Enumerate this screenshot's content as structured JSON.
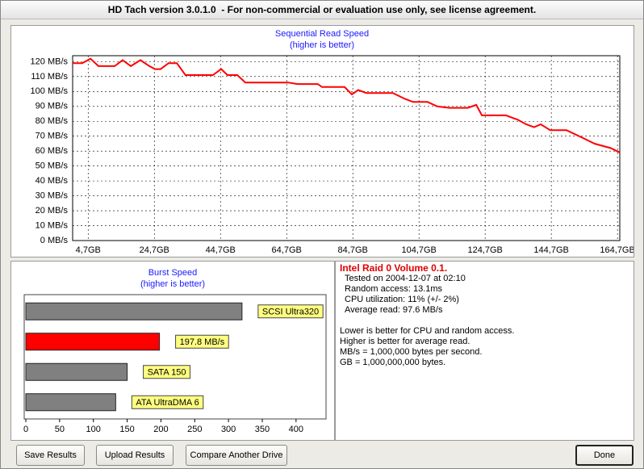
{
  "window": {
    "title": "HD Tach version 3.0.1.0  - For non-commercial or evaluation use only, see license agreement."
  },
  "chart_data": [
    {
      "type": "line",
      "title": "Sequential Read Speed",
      "subtitle": "(higher is better)",
      "color": "#ff0000",
      "grid": true,
      "x": [
        0,
        2.9,
        5.4,
        7.8,
        12.7,
        15.1,
        17.6,
        20.5,
        23.2,
        24.9,
        26.6,
        29.0,
        31.5,
        34.1,
        42.4,
        44.9,
        46.8,
        49.8,
        52.2,
        65.1,
        68.0,
        74.1,
        75.4,
        82.2,
        84.4,
        86.3,
        88.8,
        96.8,
        100.5,
        102.9,
        107.3,
        110.2,
        113.9,
        119.5,
        122.0,
        123.7,
        131.0,
        134.6,
        137.1,
        139.5,
        141.5,
        144.4,
        149.3,
        154.1,
        157.8,
        162.7,
        165.4
      ],
      "values": [
        119,
        119,
        122,
        117,
        117,
        121,
        117,
        121,
        117,
        115,
        115,
        119,
        119,
        111,
        111,
        115,
        111,
        111,
        106,
        106,
        105,
        105,
        103,
        103,
        98,
        101,
        99,
        99,
        95,
        93,
        93,
        90,
        89,
        89,
        91,
        84,
        84,
        81,
        78,
        76,
        78,
        74,
        74,
        69,
        65,
        62,
        59
      ],
      "xlim": [
        0,
        165.4
      ],
      "xticks": [
        {
          "value": 4.7,
          "label": "4,7GB"
        },
        {
          "value": 24.7,
          "label": "24,7GB"
        },
        {
          "value": 44.7,
          "label": "44,7GB"
        },
        {
          "value": 64.7,
          "label": "64,7GB"
        },
        {
          "value": 84.7,
          "label": "84,7GB"
        },
        {
          "value": 104.7,
          "label": "104,7GB"
        },
        {
          "value": 124.7,
          "label": "124,7GB"
        },
        {
          "value": 144.7,
          "label": "144,7GB"
        },
        {
          "value": 164.7,
          "label": "164,7GB"
        }
      ],
      "ylim": [
        0,
        124
      ],
      "yticks": [
        {
          "value": 0,
          "label": "0 MB/s"
        },
        {
          "value": 10,
          "label": "10 MB/s"
        },
        {
          "value": 20,
          "label": "20 MB/s"
        },
        {
          "value": 30,
          "label": "30 MB/s"
        },
        {
          "value": 40,
          "label": "40 MB/s"
        },
        {
          "value": 50,
          "label": "50 MB/s"
        },
        {
          "value": 60,
          "label": "60 MB/s"
        },
        {
          "value": 70,
          "label": "70 MB/s"
        },
        {
          "value": 80,
          "label": "80 MB/s"
        },
        {
          "value": 90,
          "label": "90 MB/s"
        },
        {
          "value": 100,
          "label": "100 MB/s"
        },
        {
          "value": 110,
          "label": "110 MB/s"
        },
        {
          "value": 120,
          "label": "120 MB/s"
        }
      ]
    },
    {
      "type": "bar",
      "orientation": "horizontal",
      "title": "Burst Speed",
      "subtitle": "(higher is better)",
      "grid": false,
      "categories": [
        "SCSI Ultra320",
        null,
        "SATA 150",
        "ATA UltraDMA 6"
      ],
      "values": [
        320,
        197.8,
        150,
        133
      ],
      "value_labels": [
        null,
        "197.8 MB/s",
        null,
        null
      ],
      "colors": [
        "#808080",
        "#ff0000",
        "#808080",
        "#808080"
      ],
      "xlim": [
        0,
        442
      ],
      "xticks": [
        0,
        50,
        100,
        150,
        200,
        250,
        300,
        350,
        400
      ]
    }
  ],
  "info": {
    "title": "Intel Raid 0 Volume 0.1.",
    "lines": [
      "Tested on 2004-12-07 at 02:10",
      "Random access: 13.1ms",
      "CPU utilization: 11% (+/- 2%)",
      "Average read: 97.6 MB/s"
    ],
    "notes": [
      "Lower is better for CPU and random access.",
      "Higher is better for average read.",
      "MB/s = 1,000,000 bytes per second.",
      "GB = 1,000,000,000 bytes."
    ]
  },
  "buttons": [
    "Save Results",
    "Upload Results",
    "Compare Another Drive",
    "Done"
  ]
}
